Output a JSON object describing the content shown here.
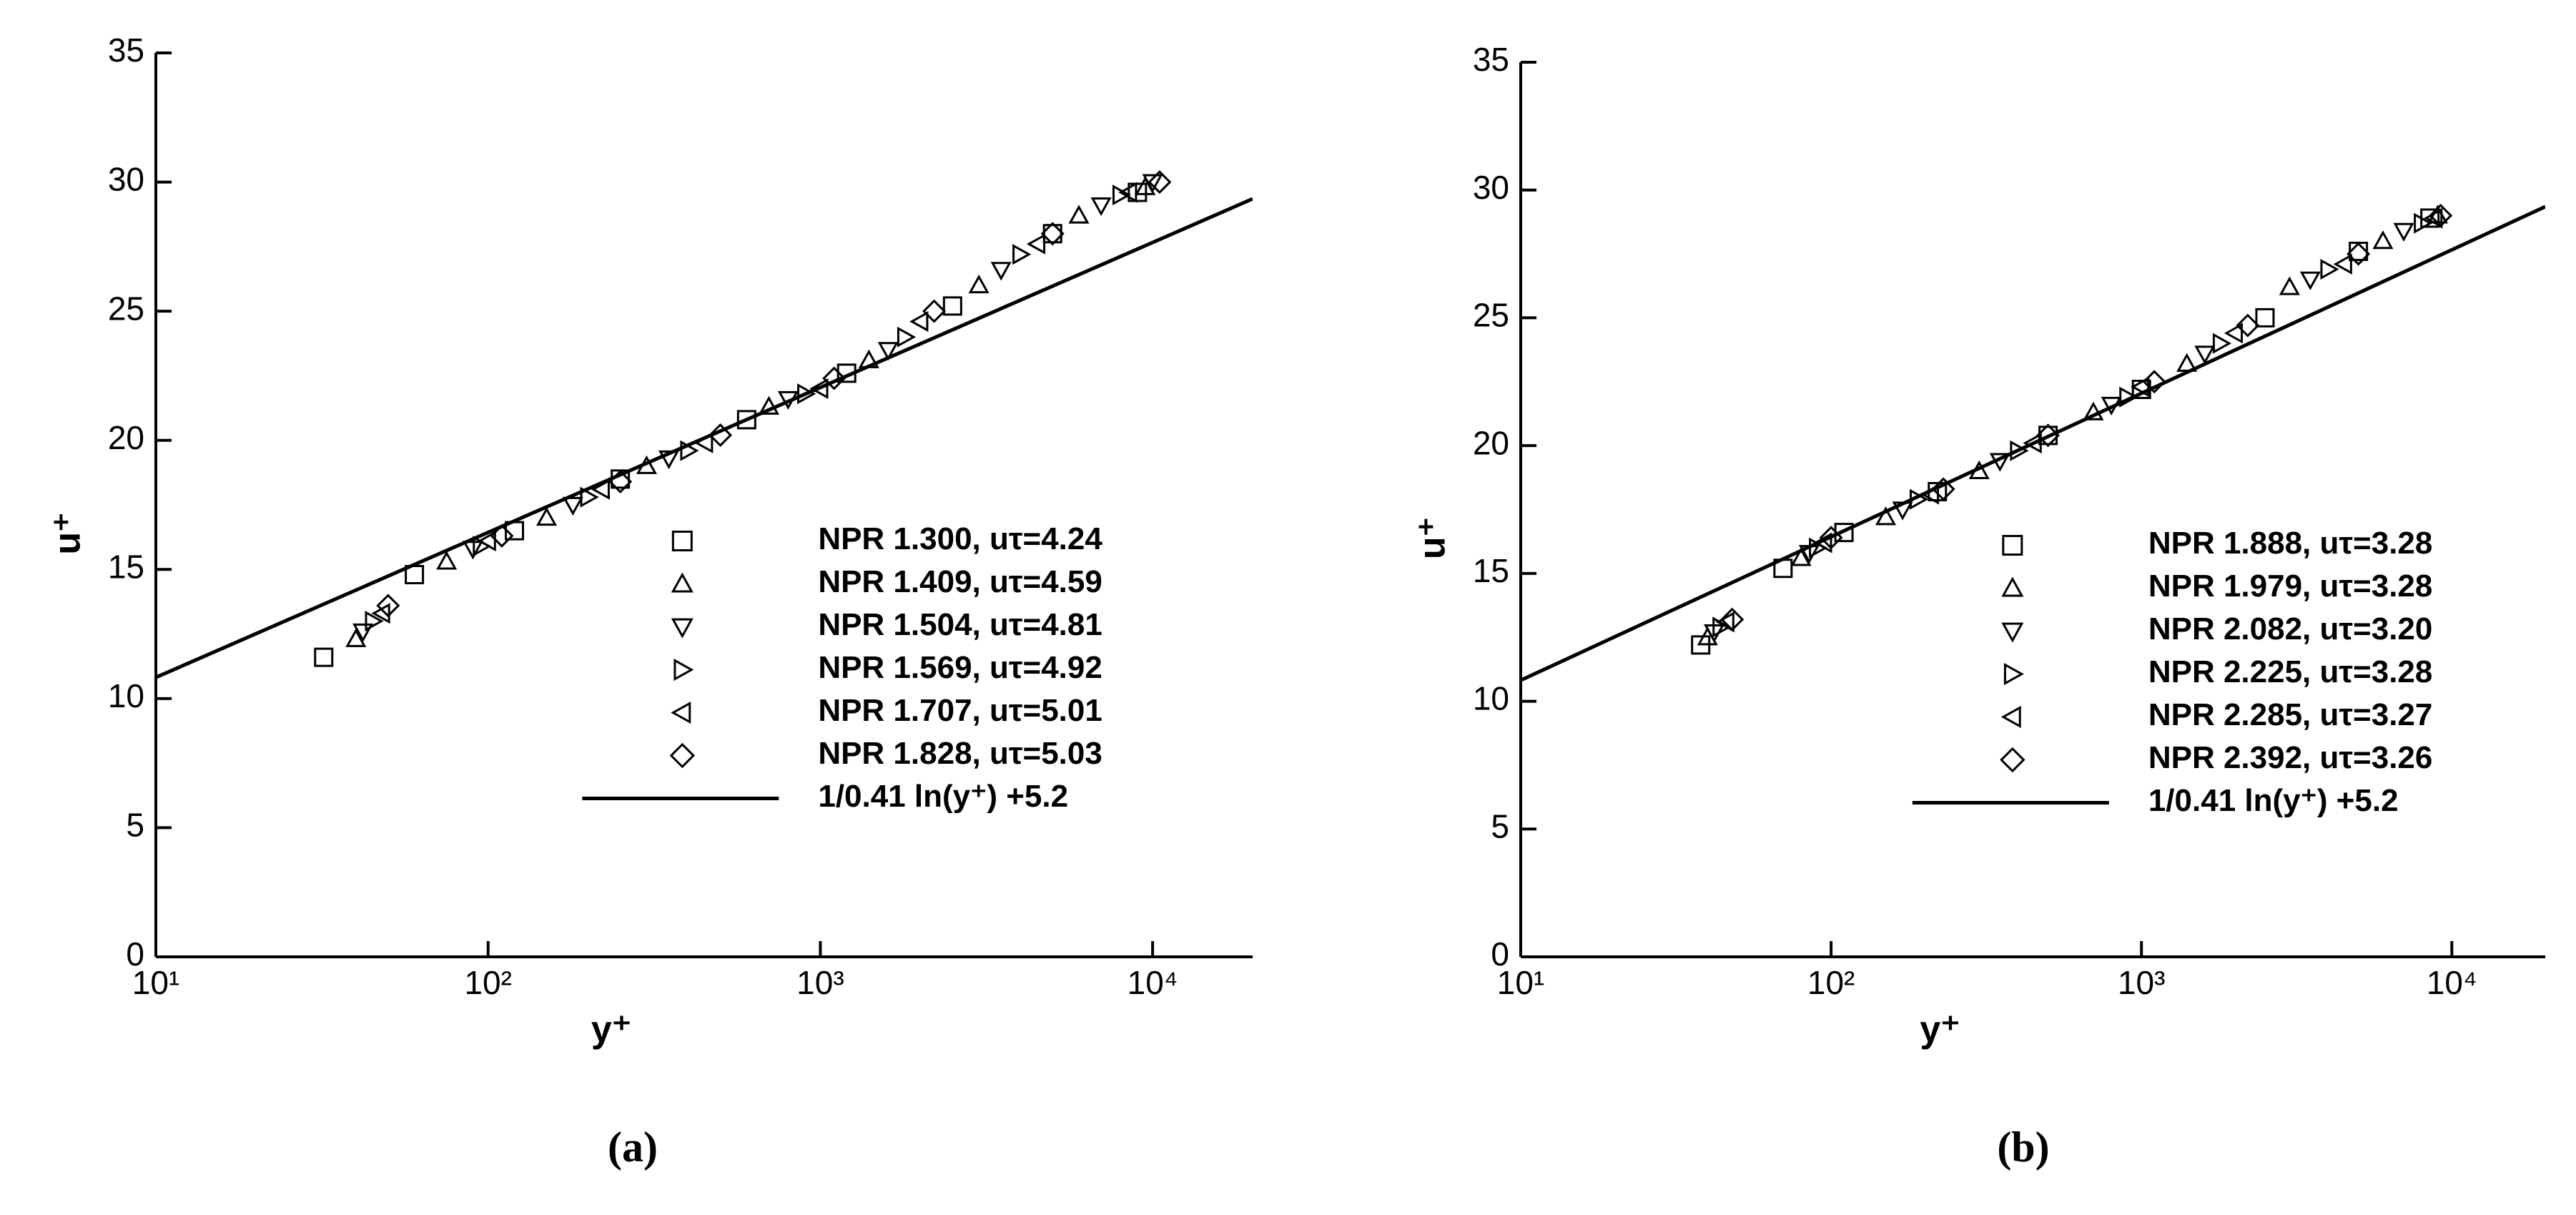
{
  "chart_data": [
    {
      "type": "scatter",
      "x_scale": "log",
      "caption": "(a)",
      "x_label": "y⁺",
      "y_label": "u⁺",
      "xlim": [
        10,
        20000
      ],
      "ylim": [
        0,
        35
      ],
      "xticks": [
        {
          "value": 10,
          "label": "10¹"
        },
        {
          "value": 100,
          "label": "10²"
        },
        {
          "value": 1000,
          "label": "10³"
        },
        {
          "value": 10000,
          "label": "10⁴"
        }
      ],
      "yticks": [
        0,
        5,
        10,
        15,
        20,
        25,
        30,
        35
      ],
      "legend": "lower right",
      "series": [
        {
          "name": "NPR 1.300, uτ=4.24",
          "marker": "square",
          "color": "#000000",
          "x": [
            32,
            60,
            120,
            250,
            600,
            1200,
            2500,
            5000,
            9000
          ],
          "values": [
            11.6,
            14.8,
            16.5,
            18.5,
            20.8,
            22.6,
            25.2,
            28.0,
            29.6
          ]
        },
        {
          "name": "NPR 1.409, uτ=4.59",
          "marker": "triangle-up",
          "color": "#000000",
          "x": [
            40,
            75,
            150,
            300,
            700,
            1400,
            3000,
            6000,
            9500
          ],
          "values": [
            12.3,
            15.3,
            17.0,
            19.0,
            21.3,
            23.1,
            26.0,
            28.7,
            29.8
          ]
        },
        {
          "name": "NPR 1.504, uτ=4.81",
          "marker": "triangle-down",
          "color": "#000000",
          "x": [
            42,
            90,
            180,
            350,
            800,
            1600,
            3500,
            7000,
            10000
          ],
          "values": [
            12.6,
            15.8,
            17.5,
            19.3,
            21.6,
            23.5,
            26.6,
            29.1,
            30.0
          ]
        },
        {
          "name": "NPR 1.569, uτ=4.92",
          "marker": "triangle-right",
          "color": "#000000",
          "x": [
            45,
            95,
            200,
            400,
            900,
            1800,
            4000,
            8000
          ],
          "values": [
            13.0,
            15.9,
            17.8,
            19.6,
            21.8,
            24.0,
            27.2,
            29.5
          ]
        },
        {
          "name": "NPR 1.707, uτ=5.01",
          "marker": "triangle-left",
          "color": "#000000",
          "x": [
            48,
            100,
            220,
            450,
            1000,
            2000,
            4500,
            8500
          ],
          "values": [
            13.3,
            16.1,
            18.1,
            19.9,
            22.0,
            24.6,
            27.6,
            29.6
          ]
        },
        {
          "name": "NPR 1.828, uτ=5.03",
          "marker": "diamond",
          "color": "#000000",
          "x": [
            50,
            110,
            250,
            500,
            1100,
            2200,
            5000,
            10500
          ],
          "values": [
            13.6,
            16.3,
            18.4,
            20.2,
            22.4,
            25.0,
            28.0,
            30.0
          ]
        },
        {
          "name": "1/0.41 ln(y⁺) +5.2",
          "marker": "line",
          "color": "#000000",
          "x": [
            10,
            20000
          ],
          "values": [
            10.82,
            29.35
          ]
        }
      ]
    },
    {
      "type": "scatter",
      "x_scale": "log",
      "caption": "(b)",
      "x_label": "y⁺",
      "y_label": "u⁺",
      "xlim": [
        10,
        20000
      ],
      "ylim": [
        0,
        35
      ],
      "xticks": [
        {
          "value": 10,
          "label": "10¹"
        },
        {
          "value": 100,
          "label": "10²"
        },
        {
          "value": 1000,
          "label": "10³"
        },
        {
          "value": 10000,
          "label": "10⁴"
        }
      ],
      "yticks": [
        0,
        5,
        10,
        15,
        20,
        25,
        30,
        35
      ],
      "legend": "lower right",
      "series": [
        {
          "name": "NPR 1.888, uτ=3.28",
          "marker": "square",
          "color": "#000000",
          "x": [
            38,
            70,
            110,
            220,
            500,
            1000,
            2500,
            5000,
            8500
          ],
          "values": [
            12.2,
            15.2,
            16.6,
            18.2,
            20.4,
            22.2,
            25.0,
            27.6,
            28.9
          ]
        },
        {
          "name": "NPR 1.979, uτ=3.28",
          "marker": "triangle-up",
          "color": "#000000",
          "x": [
            40,
            80,
            150,
            300,
            700,
            1400,
            3000,
            6000,
            9000
          ],
          "values": [
            12.5,
            15.6,
            17.2,
            19.0,
            21.3,
            23.2,
            26.2,
            28.0,
            29.0
          ]
        },
        {
          "name": "NPR 2.082, uτ=3.20",
          "marker": "triangle-down",
          "color": "#000000",
          "x": [
            42,
            85,
            170,
            350,
            800,
            1600,
            3500,
            7000
          ],
          "values": [
            12.7,
            15.8,
            17.5,
            19.4,
            21.6,
            23.6,
            26.5,
            28.4
          ]
        },
        {
          "name": "NPR 2.225, uτ=3.28",
          "marker": "triangle-right",
          "color": "#000000",
          "x": [
            44,
            90,
            190,
            400,
            900,
            1800,
            4000,
            8000
          ],
          "values": [
            12.9,
            16.0,
            17.9,
            19.8,
            21.9,
            24.0,
            26.9,
            28.7
          ]
        },
        {
          "name": "NPR 2.285, uτ=3.27",
          "marker": "triangle-left",
          "color": "#000000",
          "x": [
            46,
            95,
            210,
            450,
            1000,
            2000,
            4500,
            8800
          ],
          "values": [
            13.1,
            16.2,
            18.1,
            20.1,
            22.3,
            24.4,
            27.1,
            28.9
          ]
        },
        {
          "name": "NPR 2.392, uτ=3.26",
          "marker": "diamond",
          "color": "#000000",
          "x": [
            48,
            100,
            230,
            500,
            1100,
            2200,
            5000,
            9200
          ],
          "values": [
            13.2,
            16.4,
            18.3,
            20.4,
            22.5,
            24.7,
            27.5,
            29.0
          ]
        },
        {
          "name": "1/0.41 ln(y⁺) +5.2",
          "marker": "line",
          "color": "#000000",
          "x": [
            10,
            20000
          ],
          "values": [
            10.82,
            29.35
          ]
        }
      ]
    }
  ]
}
